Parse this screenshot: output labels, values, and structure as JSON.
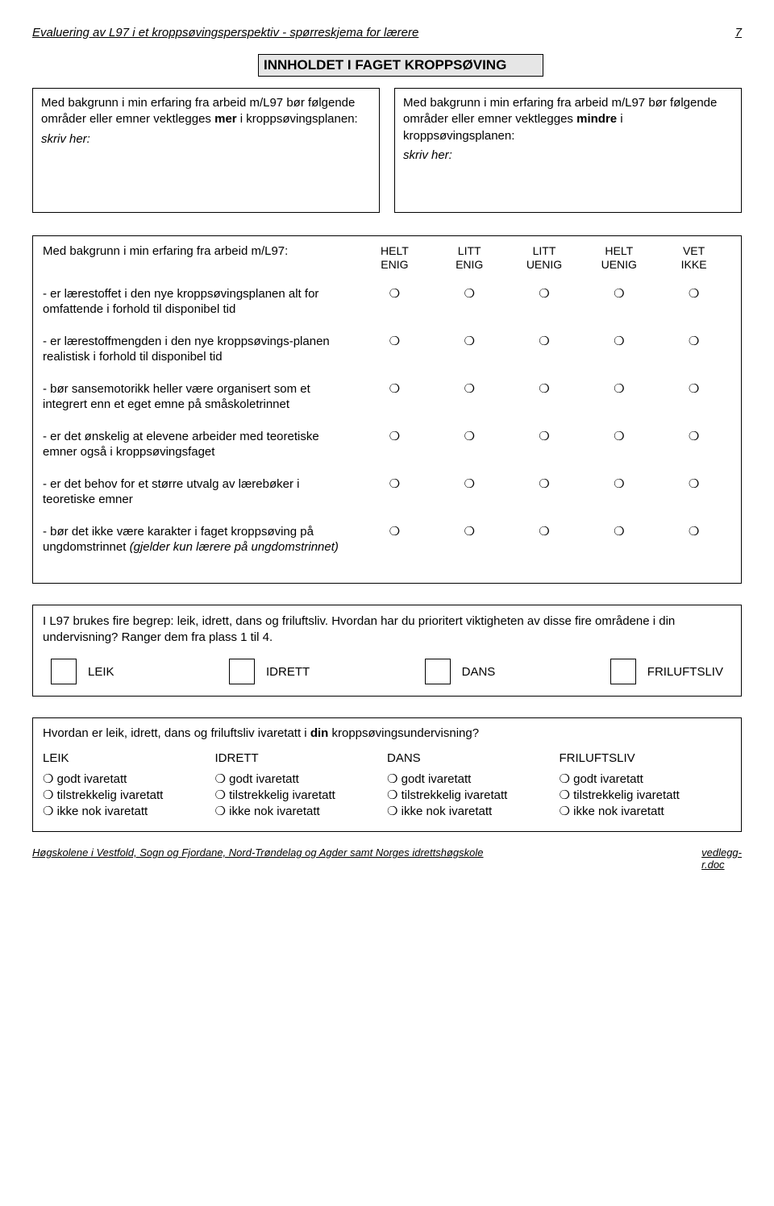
{
  "header": {
    "left": "Evaluering av L97 i et kroppsøvingsperspektiv - spørreskjema for lærere",
    "pagenum": "7"
  },
  "section_title": "INNHOLDET I FAGET KROPPSØVING",
  "box_left": {
    "line1a": "Med bakgrunn i min erfaring fra arbeid m/L97 bør følgende områder eller emner vektlegges ",
    "emph": "mer",
    "line1b": " i kroppsøvingsplanen:",
    "skriv": "skriv her:"
  },
  "box_right": {
    "line1a": "Med bakgrunn i min erfaring fra arbeid m/L97 bør følgende områder eller emner vektlegges ",
    "emph": "mindre",
    "line1b": " i kroppsøvingsplanen:",
    "skriv": "skriv her:"
  },
  "likert": {
    "lead": "Med bakgrunn i min erfaring fra arbeid m/L97:",
    "cols": [
      {
        "l1": "HELT",
        "l2": "ENIG"
      },
      {
        "l1": "LITT",
        "l2": "ENIG"
      },
      {
        "l1": "LITT",
        "l2": "UENIG"
      },
      {
        "l1": "HELT",
        "l2": "UENIG"
      },
      {
        "l1": "VET",
        "l2": "IKKE"
      }
    ],
    "rows": [
      {
        "text": "- er lærestoffet i den nye kroppsøvingsplanen alt for omfattende i forhold til disponibel tid"
      },
      {
        "text": "- er lærestoffmengden i den nye kroppsøvings-planen realistisk i forhold til disponibel tid"
      },
      {
        "text": "- bør sansemotorikk heller være organisert som et integrert enn et eget emne på småskoletrinnet"
      },
      {
        "text": "- er det ønskelig at elevene arbeider med teoretiske emner også i kroppsøvingsfaget"
      },
      {
        "text": "- er det behov for et større utvalg av lærebøker i teoretiske emner"
      },
      {
        "text_a": "- bør det ikke være karakter i faget kroppsøving på ungdomstrinnet ",
        "text_b": "(gjelder kun lærere på ungdomstrinnet)"
      }
    ],
    "radio_glyph": "❍"
  },
  "rank": {
    "intro": "I L97 brukes fire begrep: leik, idrett, dans og friluftsliv. Hvordan har du prioritert viktigheten av disse fire områdene i din undervisning? Ranger dem fra plass 1 til 4.",
    "items": [
      "LEIK",
      "IDRETT",
      "DANS",
      "FRILUFTSLIV"
    ]
  },
  "care": {
    "q_a": "Hvordan er leik, idrett, dans og friluftsliv ivaretatt i ",
    "q_b": "din",
    "q_c": " kroppsøvingsundervisning?",
    "cols": [
      "LEIK",
      "IDRETT",
      "DANS",
      "FRILUFTSLIV"
    ],
    "opts": [
      "godt ivaretatt",
      "tilstrekkelig ivaretatt",
      "ikke nok ivaretatt"
    ],
    "radio_glyph": "❍"
  },
  "footer": {
    "left": "Høgskolene i Vestfold, Sogn og Fjordane, Nord-Trøndelag og Agder samt Norges idrettshøgskole",
    "right_a": "vedlegg-",
    "right_b": "r.doc"
  }
}
